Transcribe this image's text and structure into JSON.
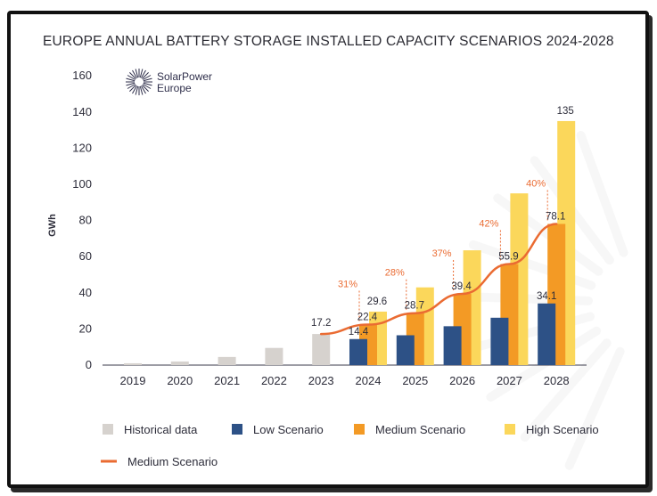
{
  "title": "EUROPE ANNUAL BATTERY STORAGE INSTALLED CAPACITY SCENARIOS 2024-2028",
  "logo": {
    "line1": "SolarPower",
    "line2": "Europe"
  },
  "colors": {
    "historical": "#d6d2ce",
    "low": "#2d5186",
    "medium": "#f39a25",
    "high": "#fbd75b",
    "line": "#ea6b32",
    "pct": "#ea6b32",
    "axis": "#2d2d3a"
  },
  "chart_data": {
    "type": "bar",
    "title": "EUROPE ANNUAL BATTERY STORAGE INSTALLED CAPACITY SCENARIOS 2024-2028",
    "xlabel": "",
    "ylabel": "GWh",
    "ylim": [
      0,
      160
    ],
    "yticks": [
      0,
      20,
      40,
      60,
      80,
      100,
      120,
      140,
      160
    ],
    "categories": [
      "2019",
      "2020",
      "2021",
      "2022",
      "2023",
      "2024",
      "2025",
      "2026",
      "2027",
      "2028"
    ],
    "historical": [
      1,
      2,
      4.5,
      9.5,
      17.2,
      null,
      null,
      null,
      null,
      null
    ],
    "series": [
      {
        "name": "Low Scenario",
        "values": [
          null,
          null,
          null,
          null,
          null,
          14.4,
          16.5,
          21.5,
          26.2,
          34.1
        ]
      },
      {
        "name": "Medium Scenario",
        "values": [
          null,
          null,
          null,
          null,
          null,
          22.4,
          28.7,
          39.4,
          55.9,
          78.1
        ]
      },
      {
        "name": "High Scenario",
        "values": [
          null,
          null,
          null,
          null,
          null,
          29.6,
          43,
          63.5,
          95,
          135
        ]
      }
    ],
    "line": {
      "name": "Medium Scenario",
      "values": [
        null,
        null,
        null,
        null,
        17.2,
        22.4,
        28.7,
        39.4,
        55.9,
        78.1
      ]
    },
    "growth_labels": [
      null,
      null,
      null,
      null,
      null,
      "31%",
      "28%",
      "37%",
      "42%",
      "40%"
    ],
    "value_labels": {
      "historical": [
        null,
        null,
        null,
        null,
        "17.2",
        null,
        null,
        null,
        null,
        null
      ],
      "low": [
        null,
        null,
        null,
        null,
        null,
        "14.4",
        null,
        null,
        null,
        "34.1"
      ],
      "medium": [
        null,
        null,
        null,
        null,
        null,
        "22.4",
        "28.7",
        "39.4",
        "55.9",
        "78.1"
      ],
      "high": [
        null,
        null,
        null,
        null,
        null,
        "29.6",
        null,
        null,
        null,
        "135"
      ]
    },
    "legend": [
      "Historical data",
      "Low Scenario",
      "Medium Scenario",
      "High Scenario",
      "Medium Scenario"
    ]
  }
}
